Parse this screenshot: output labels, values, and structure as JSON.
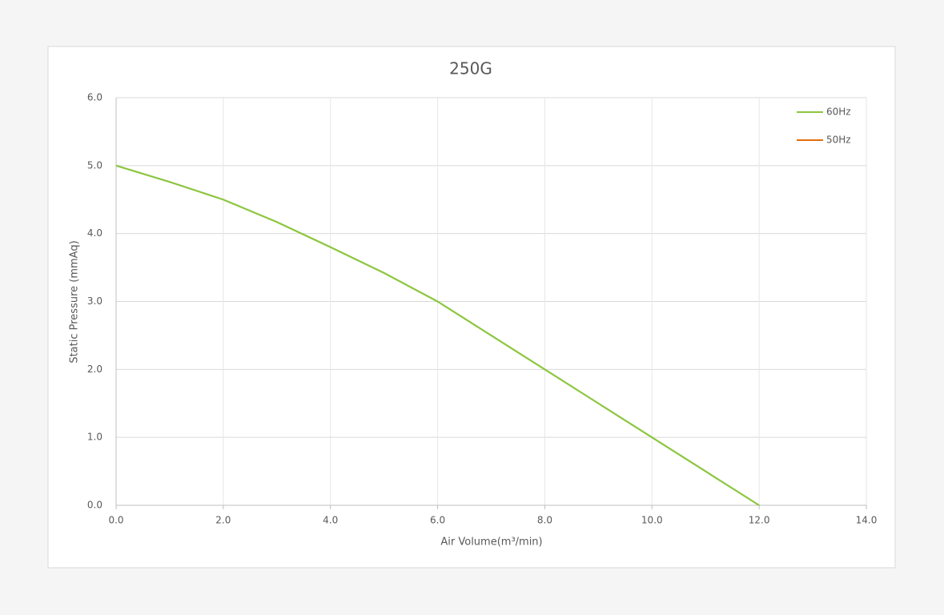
{
  "chart_data": {
    "type": "line",
    "title": "250G",
    "x_label": "Air Volume(m³/min)",
    "y_label": "Static Pressure (mmAq)",
    "x": [
      0,
      1,
      2,
      3,
      4,
      5,
      6,
      7,
      8,
      9,
      10,
      11,
      12
    ],
    "series": [
      {
        "name": "60Hz",
        "color": "#8cc63f",
        "values": [
          5.0,
          4.76,
          4.5,
          4.17,
          3.8,
          3.42,
          3.0,
          2.5,
          2.0,
          1.5,
          1.0,
          0.5,
          0.0
        ]
      },
      {
        "name": "50Hz",
        "color": "#e36c0a",
        "values": [
          null,
          null,
          null,
          null,
          null,
          null,
          null,
          null,
          null,
          null,
          null,
          null,
          null
        ]
      }
    ],
    "xlim": [
      0,
      14
    ],
    "xticks": [
      {
        "value": 0,
        "label": "0.0"
      },
      {
        "value": 2,
        "label": "2.0"
      },
      {
        "value": 4,
        "label": "4.0"
      },
      {
        "value": 6,
        "label": "6.0"
      },
      {
        "value": 8,
        "label": "8.0"
      },
      {
        "value": 10,
        "label": "10.0"
      },
      {
        "value": 12,
        "label": "12.0"
      },
      {
        "value": 14,
        "label": "14.0"
      }
    ],
    "ylim": [
      0,
      6
    ],
    "yticks": [
      {
        "value": 0,
        "label": "0.0"
      },
      {
        "value": 1,
        "label": "1.0"
      },
      {
        "value": 2,
        "label": "2.0"
      },
      {
        "value": 3,
        "label": "3.0"
      },
      {
        "value": 4,
        "label": "4.0"
      },
      {
        "value": 5,
        "label": "5.0"
      },
      {
        "value": 6,
        "label": "6.0"
      }
    ],
    "grid": true,
    "legend": "top-right"
  }
}
